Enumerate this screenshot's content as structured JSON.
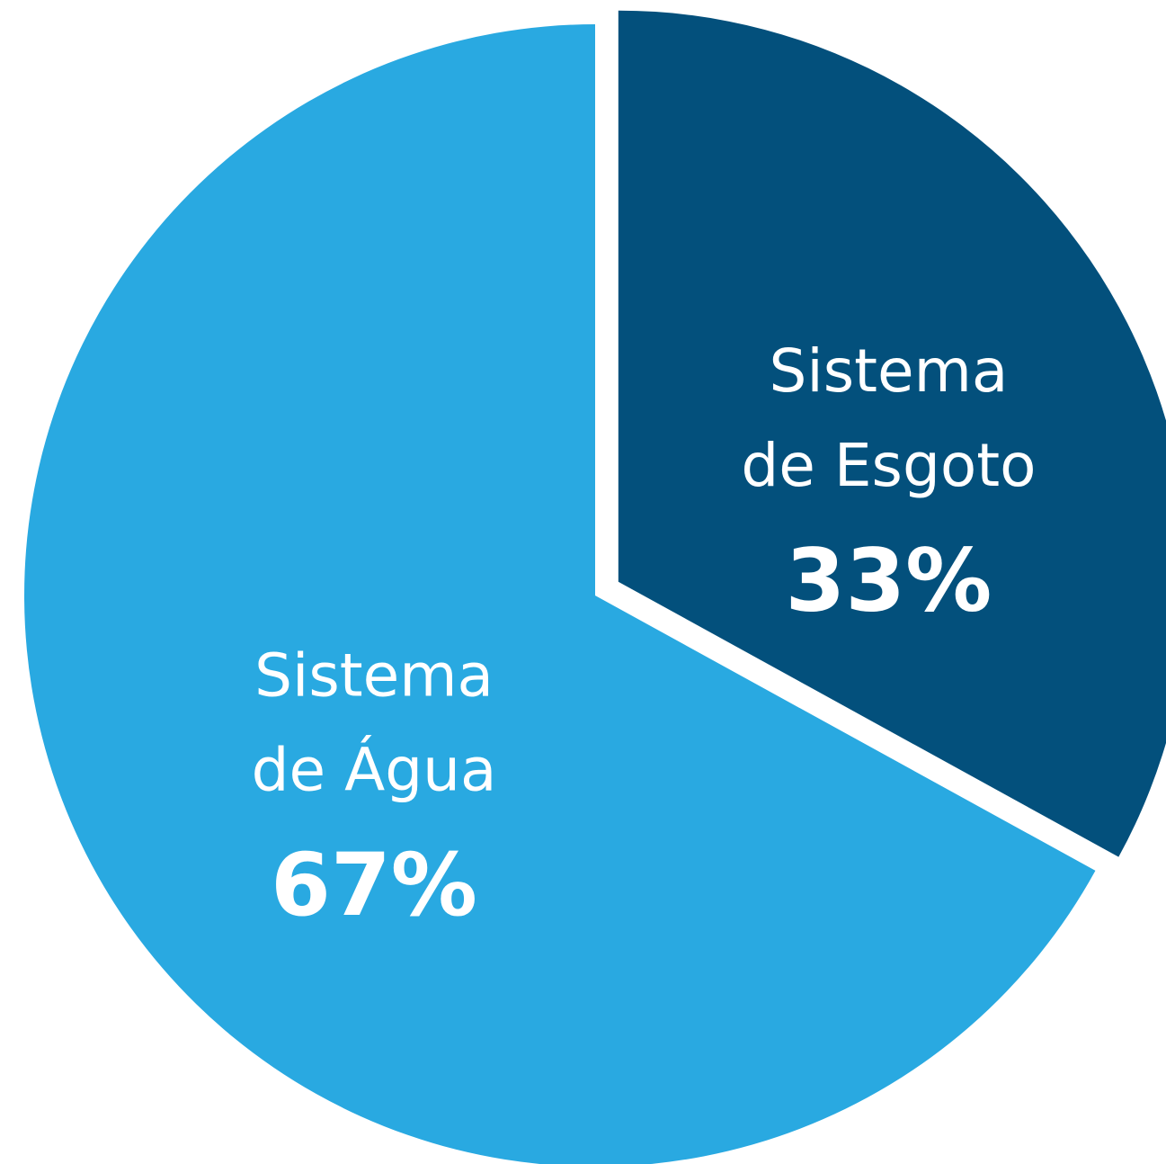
{
  "chart_data": {
    "type": "pie",
    "categories": [
      "Sistema de Esgoto",
      "Sistema de Água"
    ],
    "values": [
      33,
      67
    ],
    "value_labels": [
      "33%",
      "67%"
    ],
    "colors": [
      "#03507c",
      "#29a9e1"
    ]
  }
}
